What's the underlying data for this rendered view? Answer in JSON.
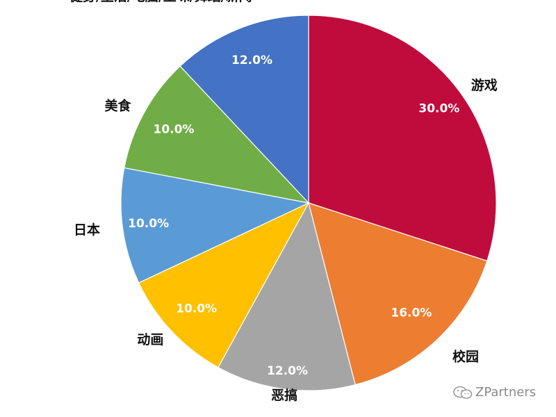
{
  "chart_data": {
    "type": "pie",
    "title": "",
    "start_angle_deg": 0,
    "direction": "clockwise",
    "categories": [
      "游戏",
      "校园",
      "恶搞",
      "动画",
      "日本",
      "美食",
      "健身/生活/电脑/土味/舞蹈/新闻"
    ],
    "values": [
      30.0,
      16.0,
      12.0,
      10.0,
      10.0,
      10.0,
      12.0
    ],
    "value_labels": [
      "30.0%",
      "16.0%",
      "12.0%",
      "10.0%",
      "10.0%",
      "10.0%",
      "12.0%"
    ],
    "colors": [
      "#C00C3C",
      "#ED7D31",
      "#A5A5A5",
      "#FFC000",
      "#5B9BD5",
      "#70AD47",
      "#4472C4"
    ],
    "legend": "none",
    "data_labels": "inside"
  },
  "watermark": {
    "text": "ZPartners",
    "icon": "wechat-icon"
  }
}
